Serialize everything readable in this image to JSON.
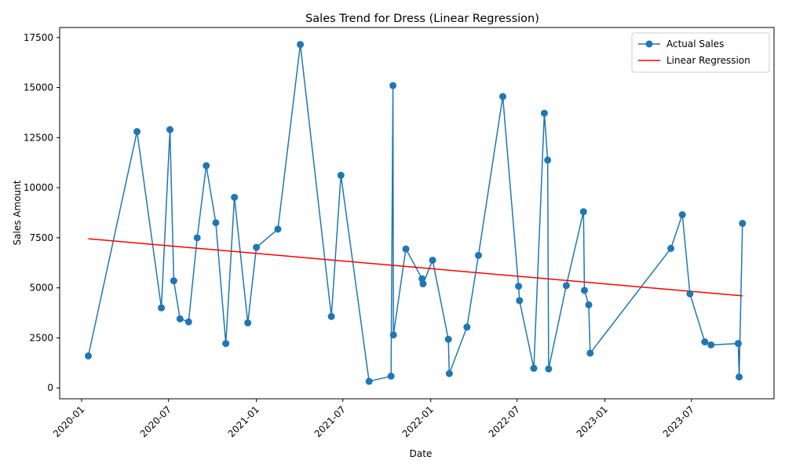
{
  "chart_data": {
    "type": "line",
    "title": "Sales Trend for Dress (Linear Regression)",
    "xlabel": "Date",
    "ylabel": "Sales Amount",
    "x_ticks": [
      "2020-01",
      "2020-07",
      "2021-01",
      "2021-07",
      "2022-01",
      "2022-07",
      "2023-01",
      "2023-07"
    ],
    "y_ticks": [
      0,
      2500,
      5000,
      7500,
      10000,
      12500,
      15000,
      17500
    ],
    "xlim": [
      "2019-11-16",
      "2023-12-21"
    ],
    "ylim": [
      -540,
      18000
    ],
    "grid": false,
    "legend_position": "top-right",
    "colors": {
      "actual": "#1f77b4",
      "regression": "#ff0000"
    },
    "series": [
      {
        "name": "Actual Sales",
        "style": "line-with-markers",
        "x": [
          "2020-01-15",
          "2020-04-26",
          "2020-06-16",
          "2020-07-04",
          "2020-07-12",
          "2020-07-25",
          "2020-08-12",
          "2020-08-30",
          "2020-09-18",
          "2020-10-08",
          "2020-10-29",
          "2020-11-16",
          "2020-12-14",
          "2021-01-01",
          "2021-02-15",
          "2021-04-03",
          "2021-06-07",
          "2021-06-27",
          "2021-08-25",
          "2021-10-10",
          "2021-10-14",
          "2021-10-15",
          "2021-11-10",
          "2021-12-14",
          "2021-12-16",
          "2022-01-05",
          "2022-02-07",
          "2022-02-09",
          "2022-03-18",
          "2022-04-11",
          "2022-06-01",
          "2022-07-04",
          "2022-07-06",
          "2022-08-05",
          "2022-08-27",
          "2022-09-03",
          "2022-09-05",
          "2022-10-12",
          "2022-11-17",
          "2022-11-19",
          "2022-11-28",
          "2022-12-01",
          "2023-05-19",
          "2023-06-12",
          "2023-06-28",
          "2023-07-29",
          "2023-08-11",
          "2023-10-07",
          "2023-10-09",
          "2023-10-16"
        ],
        "y": [
          1600,
          12800,
          4000,
          12900,
          5350,
          3450,
          3300,
          7500,
          11100,
          8250,
          2220,
          9520,
          3250,
          7020,
          7930,
          17150,
          3570,
          10620,
          330,
          590,
          15100,
          2650,
          6940,
          5450,
          5200,
          6380,
          2430,
          720,
          3040,
          6620,
          14550,
          5080,
          4360,
          980,
          13720,
          11380,
          950,
          5110,
          8800,
          4870,
          4150,
          1740,
          6970,
          8650,
          4700,
          2300,
          2150,
          2220,
          550,
          8220
        ]
      },
      {
        "name": "Linear Regression",
        "style": "line",
        "x": [
          "2020-01-15",
          "2023-10-16"
        ],
        "y": [
          7450,
          4600
        ]
      }
    ]
  }
}
